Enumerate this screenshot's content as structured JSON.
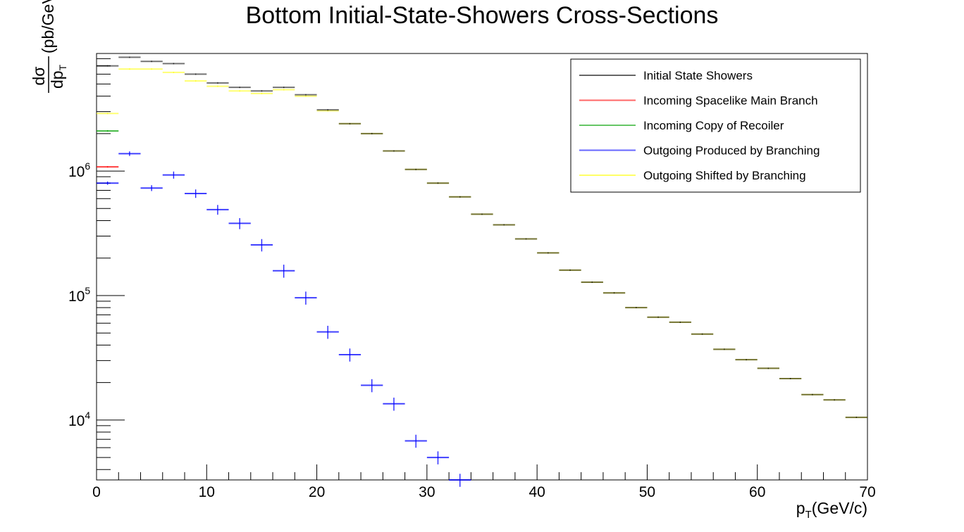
{
  "chart_data": {
    "type": "scatter",
    "title": "Bottom Initial-State-Showers Cross-Sections",
    "xlabel": "p_T(GeV/c)",
    "ylabel": "dσ/dp_T(pb/GeV/c)",
    "xlabel_main": "p",
    "xlabel_sub": "T",
    "xlabel_unit": "(GeV/c)",
    "ylabel_num": "dσ",
    "ylabel_den_main": "dp",
    "ylabel_den_sub": "T",
    "ylabel_unit": "(pb/GeV/c)",
    "xlim": [
      0,
      70
    ],
    "ylim": [
      3300,
      8800000
    ],
    "log_y": true,
    "x_ticks": [
      0,
      10,
      20,
      30,
      40,
      50,
      60,
      70
    ],
    "y_decades": [
      {
        "base": "10",
        "exp": "4",
        "value": 10000
      },
      {
        "base": "10",
        "exp": "5",
        "value": 100000
      },
      {
        "base": "10",
        "exp": "6",
        "value": 1000000
      }
    ],
    "bin_width": 2,
    "legend_position": "top-right",
    "series": [
      {
        "name": "Initial State Showers",
        "color": "#000000",
        "x": [
          1,
          3,
          5,
          7,
          9,
          11,
          13,
          15,
          17,
          19,
          21,
          23,
          25,
          27,
          29,
          31,
          33,
          35,
          37,
          39,
          41,
          43,
          45,
          47,
          49,
          51,
          53,
          55,
          57,
          59,
          61,
          63,
          65,
          67,
          69
        ],
        "values": [
          7000000,
          8200000,
          7600000,
          7300000,
          6000000,
          5100000,
          4700000,
          4400000,
          4700000,
          4100000,
          3100000,
          2400000,
          2000000,
          1450000,
          1030000,
          800000,
          620000,
          450000,
          370000,
          285000,
          220000,
          160000,
          128000,
          105000,
          80000,
          67000,
          61000,
          49000,
          37000,
          30500,
          26000,
          21500,
          16000,
          14500,
          10500
        ]
      },
      {
        "name": "Incoming Spacelike Main Branch",
        "color": "#ff0000",
        "x": [
          1
        ],
        "values": [
          1080000
        ]
      },
      {
        "name": "Incoming Copy of Recoiler",
        "color": "#00a000",
        "x": [
          1
        ],
        "values": [
          2100000
        ]
      },
      {
        "name": "Outgoing Produced by Branching",
        "color": "#0000ff",
        "x": [
          1,
          3,
          5,
          7,
          9,
          11,
          13,
          15,
          17,
          19,
          21,
          23,
          25,
          27,
          29,
          31,
          33
        ],
        "values": [
          800000,
          1380000,
          730000,
          930000,
          660000,
          490000,
          380000,
          255000,
          158000,
          96000,
          51000,
          33500,
          19000,
          13500,
          6800,
          5000,
          3300
        ]
      },
      {
        "name": "Outgoing Shifted by Branching",
        "color": "#ffff00",
        "x": [
          1,
          3,
          5,
          7,
          9,
          11,
          13,
          15,
          17,
          19,
          21,
          23,
          25,
          27,
          29,
          31,
          33,
          35,
          37,
          39,
          41,
          43,
          45,
          47,
          49,
          51,
          53,
          55,
          57,
          59,
          61,
          63,
          65,
          67,
          69
        ],
        "values": [
          2900000,
          6600000,
          6600000,
          6200000,
          5300000,
          4800000,
          4400000,
          4200000,
          4500000,
          4000000,
          3050000,
          2400000,
          2000000,
          1450000,
          1030000,
          800000,
          620000,
          450000,
          370000,
          285000,
          220000,
          160000,
          128000,
          105000,
          80000,
          67000,
          61000,
          49000,
          37000,
          30500,
          26000,
          21500,
          16000,
          14500,
          10500
        ]
      }
    ]
  }
}
